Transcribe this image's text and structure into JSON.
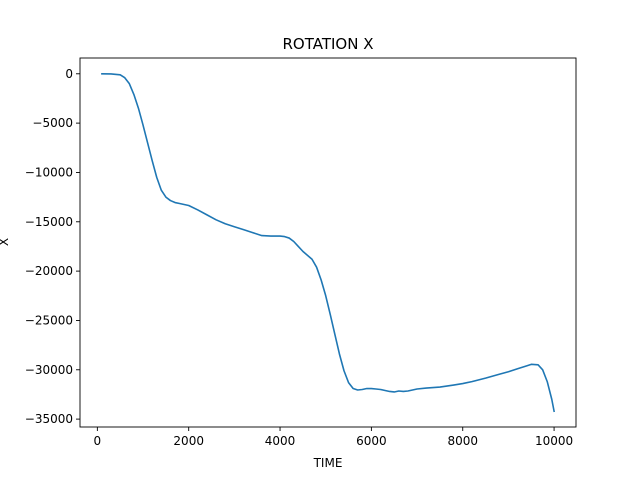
{
  "chart_data": {
    "type": "line",
    "title": "ROTATION X",
    "xlabel": "TIME",
    "ylabel": "X",
    "xlim": [
      -380,
      10480
    ],
    "ylim": [
      -35800,
      1600
    ],
    "xticks": [
      0,
      2000,
      4000,
      6000,
      8000,
      10000
    ],
    "xtick_labels": [
      "0",
      "2000",
      "4000",
      "6000",
      "8000",
      "10000"
    ],
    "yticks": [
      0,
      -5000,
      -10000,
      -15000,
      -20000,
      -25000,
      -30000,
      -35000
    ],
    "ytick_labels": [
      "0",
      "−5000",
      "−10000",
      "−15000",
      "−20000",
      "−25000",
      "−30000",
      "−35000"
    ],
    "grid": false,
    "series": [
      {
        "color": "#1f77b4",
        "x": [
          100,
          300,
          500,
          600,
          700,
          800,
          900,
          1000,
          1100,
          1200,
          1300,
          1400,
          1500,
          1600,
          1700,
          1800,
          2000,
          2200,
          2400,
          2600,
          2800,
          3000,
          3200,
          3400,
          3600,
          3800,
          4000,
          4100,
          4200,
          4300,
          4400,
          4500,
          4700,
          4800,
          4900,
          5000,
          5100,
          5200,
          5300,
          5400,
          5500,
          5600,
          5700,
          5800,
          5900,
          6000,
          6100,
          6200,
          6300,
          6400,
          6500,
          6600,
          6700,
          6800,
          7000,
          7200,
          7500,
          7800,
          8000,
          8200,
          8500,
          8800,
          9000,
          9200,
          9400,
          9500,
          9650,
          9750,
          9850,
          9950,
          10000
        ],
        "y": [
          0,
          -20,
          -100,
          -400,
          -1000,
          -2100,
          -3500,
          -5200,
          -7000,
          -8800,
          -10500,
          -11800,
          -12500,
          -12850,
          -13050,
          -13150,
          -13350,
          -13800,
          -14300,
          -14800,
          -15200,
          -15500,
          -15800,
          -16100,
          -16400,
          -16450,
          -16450,
          -16500,
          -16650,
          -17000,
          -17500,
          -18000,
          -18800,
          -19600,
          -20900,
          -22500,
          -24400,
          -26400,
          -28400,
          -30100,
          -31300,
          -31900,
          -32050,
          -32000,
          -31900,
          -31900,
          -31950,
          -32000,
          -32100,
          -32200,
          -32250,
          -32150,
          -32200,
          -32150,
          -31950,
          -31850,
          -31750,
          -31550,
          -31400,
          -31200,
          -30850,
          -30450,
          -30200,
          -29900,
          -29600,
          -29450,
          -29500,
          -30000,
          -31200,
          -33000,
          -34200
        ]
      }
    ]
  }
}
